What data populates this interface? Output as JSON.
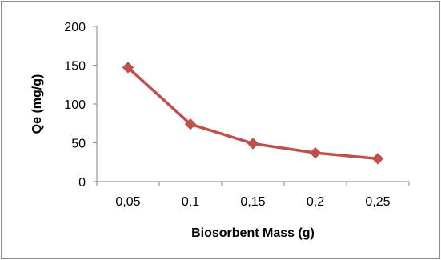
{
  "chart_data": {
    "type": "line",
    "categories": [
      "0,05",
      "0,1",
      "0,15",
      "0,2",
      "0,25"
    ],
    "series": [
      {
        "values": [
          147,
          74,
          49,
          37,
          29.5
        ]
      }
    ],
    "xlabel": "Biosorbent Mass (g)",
    "ylabel": "Qe (mg/g)",
    "ylim": [
      0,
      200
    ],
    "yticks": [
      "0",
      "50",
      "100",
      "150",
      "200"
    ],
    "grid": false,
    "legend": "none",
    "colors": {
      "series": "#c0504d",
      "axis": "#868686",
      "frame": "#8c8c8c"
    },
    "marker": "diamond"
  }
}
